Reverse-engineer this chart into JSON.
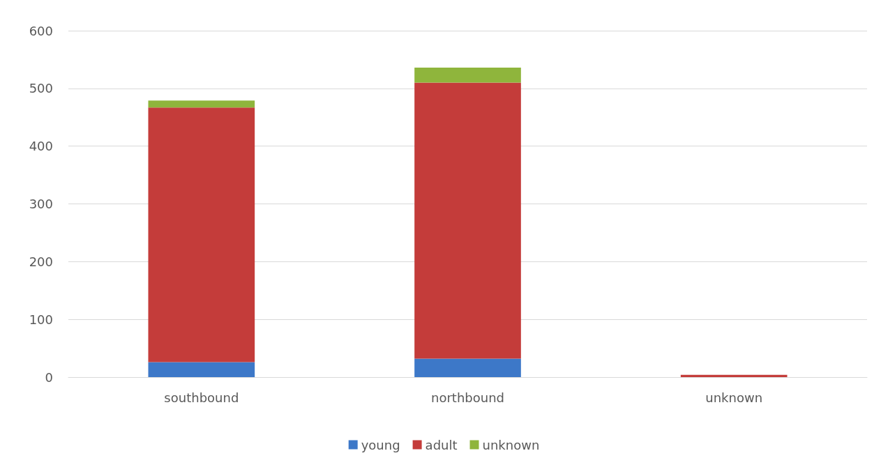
{
  "chart_data": {
    "type": "bar",
    "stacked": true,
    "categories": [
      "southbound",
      "northbound",
      "unknown"
    ],
    "series": [
      {
        "name": "young",
        "color": "#3d78c8",
        "values": [
          26,
          32,
          0
        ]
      },
      {
        "name": "adult",
        "color": "#c43c3a",
        "values": [
          441,
          478,
          4
        ]
      },
      {
        "name": "unknown",
        "color": "#8fb53c",
        "values": [
          12,
          26,
          0
        ]
      }
    ],
    "ylim": [
      0,
      600
    ],
    "yticks": [
      0,
      100,
      200,
      300,
      400,
      500,
      600
    ],
    "grid": "y",
    "legend": "bottom"
  }
}
